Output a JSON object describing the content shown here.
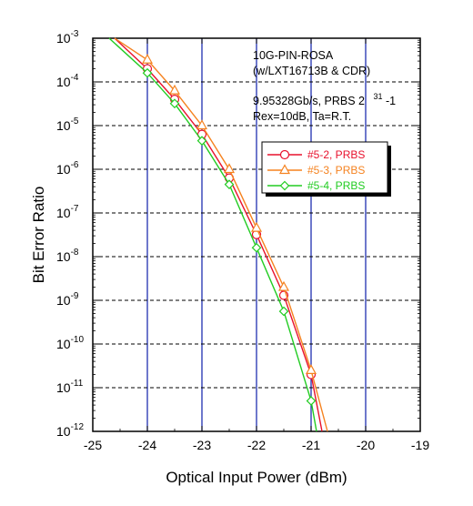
{
  "chart_data": {
    "type": "line",
    "xlabel": "Optical Input Power (dBm)",
    "ylabel": "Bit Error Ratio",
    "xlim": [
      -25,
      -19
    ],
    "ylim": [
      1e-12,
      0.001
    ],
    "yscale": "log",
    "x_ticks": [
      "-25",
      "-24",
      "-23",
      "-22",
      "-21",
      "-20",
      "-19"
    ],
    "y_ticks": [
      {
        "base": "10",
        "exp": "-3"
      },
      {
        "base": "10",
        "exp": "-4"
      },
      {
        "base": "10",
        "exp": "-5"
      },
      {
        "base": "10",
        "exp": "-6"
      },
      {
        "base": "10",
        "exp": "-7"
      },
      {
        "base": "10",
        "exp": "-8"
      },
      {
        "base": "10",
        "exp": "-9"
      },
      {
        "base": "10",
        "exp": "-10"
      },
      {
        "base": "10",
        "exp": "-11"
      },
      {
        "base": "10",
        "exp": "-12"
      }
    ],
    "grid": true,
    "legend_position": "right",
    "annotations": {
      "line1": "10G-PIN-ROSA",
      "line2": "(w/LXT16713B & CDR)",
      "line3_main": "9.95328Gb/s, PRBS 2",
      "line3_sup": "31",
      "line3_tail": "-1",
      "line4": "Rex=10dB, Ta=R.T."
    },
    "series": [
      {
        "name": "#5-2, PRBS",
        "color": "#e8112d",
        "marker": "circle",
        "x": [
          -24.0,
          -23.5,
          -23.0,
          -22.5,
          -22.0,
          -21.5,
          -21.0
        ],
        "y": [
          0.0002,
          4e-05,
          6.3e-06,
          6.3e-07,
          3.2e-08,
          1.3e-09,
          2e-11
        ],
        "line_x": [
          -24.6,
          -20.8
        ],
        "line_y": [
          0.001,
          1e-12
        ]
      },
      {
        "name": "#5-3, PRBS",
        "color": "#f5821f",
        "marker": "triangle",
        "x": [
          -24.0,
          -23.5,
          -23.0,
          -22.5,
          -22.0,
          -21.5,
          -21.0
        ],
        "y": [
          0.00032,
          6.3e-05,
          1e-05,
          1e-06,
          4.5e-08,
          2e-09,
          2.5e-11
        ],
        "line_x": [
          -24.6,
          -20.7
        ],
        "line_y": [
          0.001,
          1e-12
        ]
      },
      {
        "name": "#5-4, PRBS",
        "color": "#22cc22",
        "marker": "diamond",
        "x": [
          -24.0,
          -23.5,
          -23.0,
          -22.5,
          -22.0,
          -21.5,
          -21.0
        ],
        "y": [
          0.00016,
          3.2e-05,
          4.5e-06,
          4.5e-07,
          1.6e-08,
          5.6e-10,
          5e-12
        ],
        "line_x": [
          -24.7,
          -20.9
        ],
        "line_y": [
          0.001,
          1e-12
        ]
      }
    ]
  }
}
